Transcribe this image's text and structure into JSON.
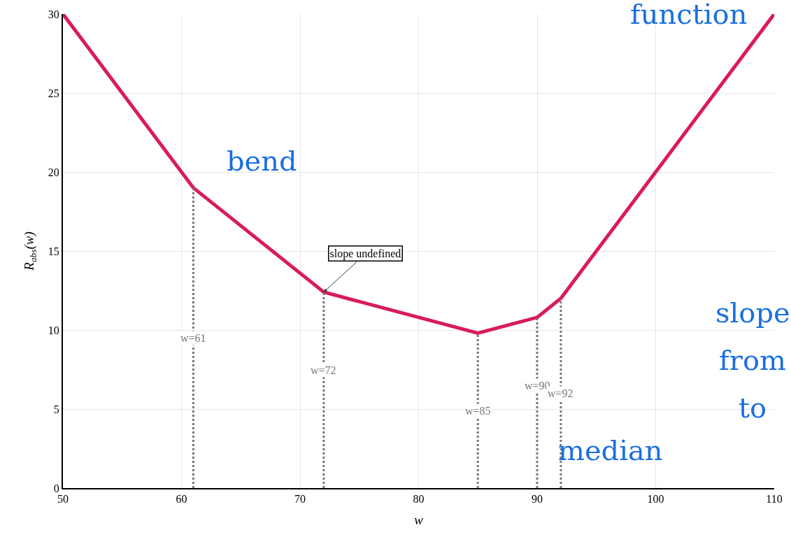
{
  "chart_data": {
    "type": "line",
    "xlabel": "w",
    "ylabel": "R$_{abs}$(w)",
    "x": [
      50,
      61,
      72,
      85,
      90,
      92,
      110
    ],
    "series": [
      {
        "color": "#d81b5c",
        "values": [
          30,
          19,
          12.4,
          9.8,
          10.8,
          12,
          30
        ]
      }
    ],
    "xlim": [
      50,
      110
    ],
    "xticks": [
      50,
      60,
      70,
      80,
      90,
      100,
      110
    ],
    "ylim": [
      0,
      30
    ],
    "yticks": [
      0,
      5,
      10,
      15,
      20,
      25,
      30
    ],
    "grid": true,
    "marker": "none",
    "line_style": "solid",
    "ref_lines": [
      {
        "axis": "x",
        "value": 61,
        "label": "w=61",
        "color": "#777777",
        "line_style": "dotted"
      },
      {
        "axis": "x",
        "value": 72,
        "label": "w=72",
        "color": "#777777",
        "line_style": "dotted"
      },
      {
        "axis": "x",
        "value": 85,
        "label": "w=85",
        "color": "#777777",
        "line_style": "dotted"
      },
      {
        "axis": "x",
        "value": 90,
        "label": "w=90",
        "color": "#777777",
        "line_style": "dotted"
      },
      {
        "axis": "x",
        "value": 92,
        "label": "w=92",
        "color": "#777777",
        "line_style": "dotted"
      }
    ],
    "annotations": [
      {
        "text": "slope undefined",
        "x": 72,
        "y": 12.4
      },
      "function",
      "bend",
      "slope",
      "from",
      "to",
      "median"
    ]
  }
}
